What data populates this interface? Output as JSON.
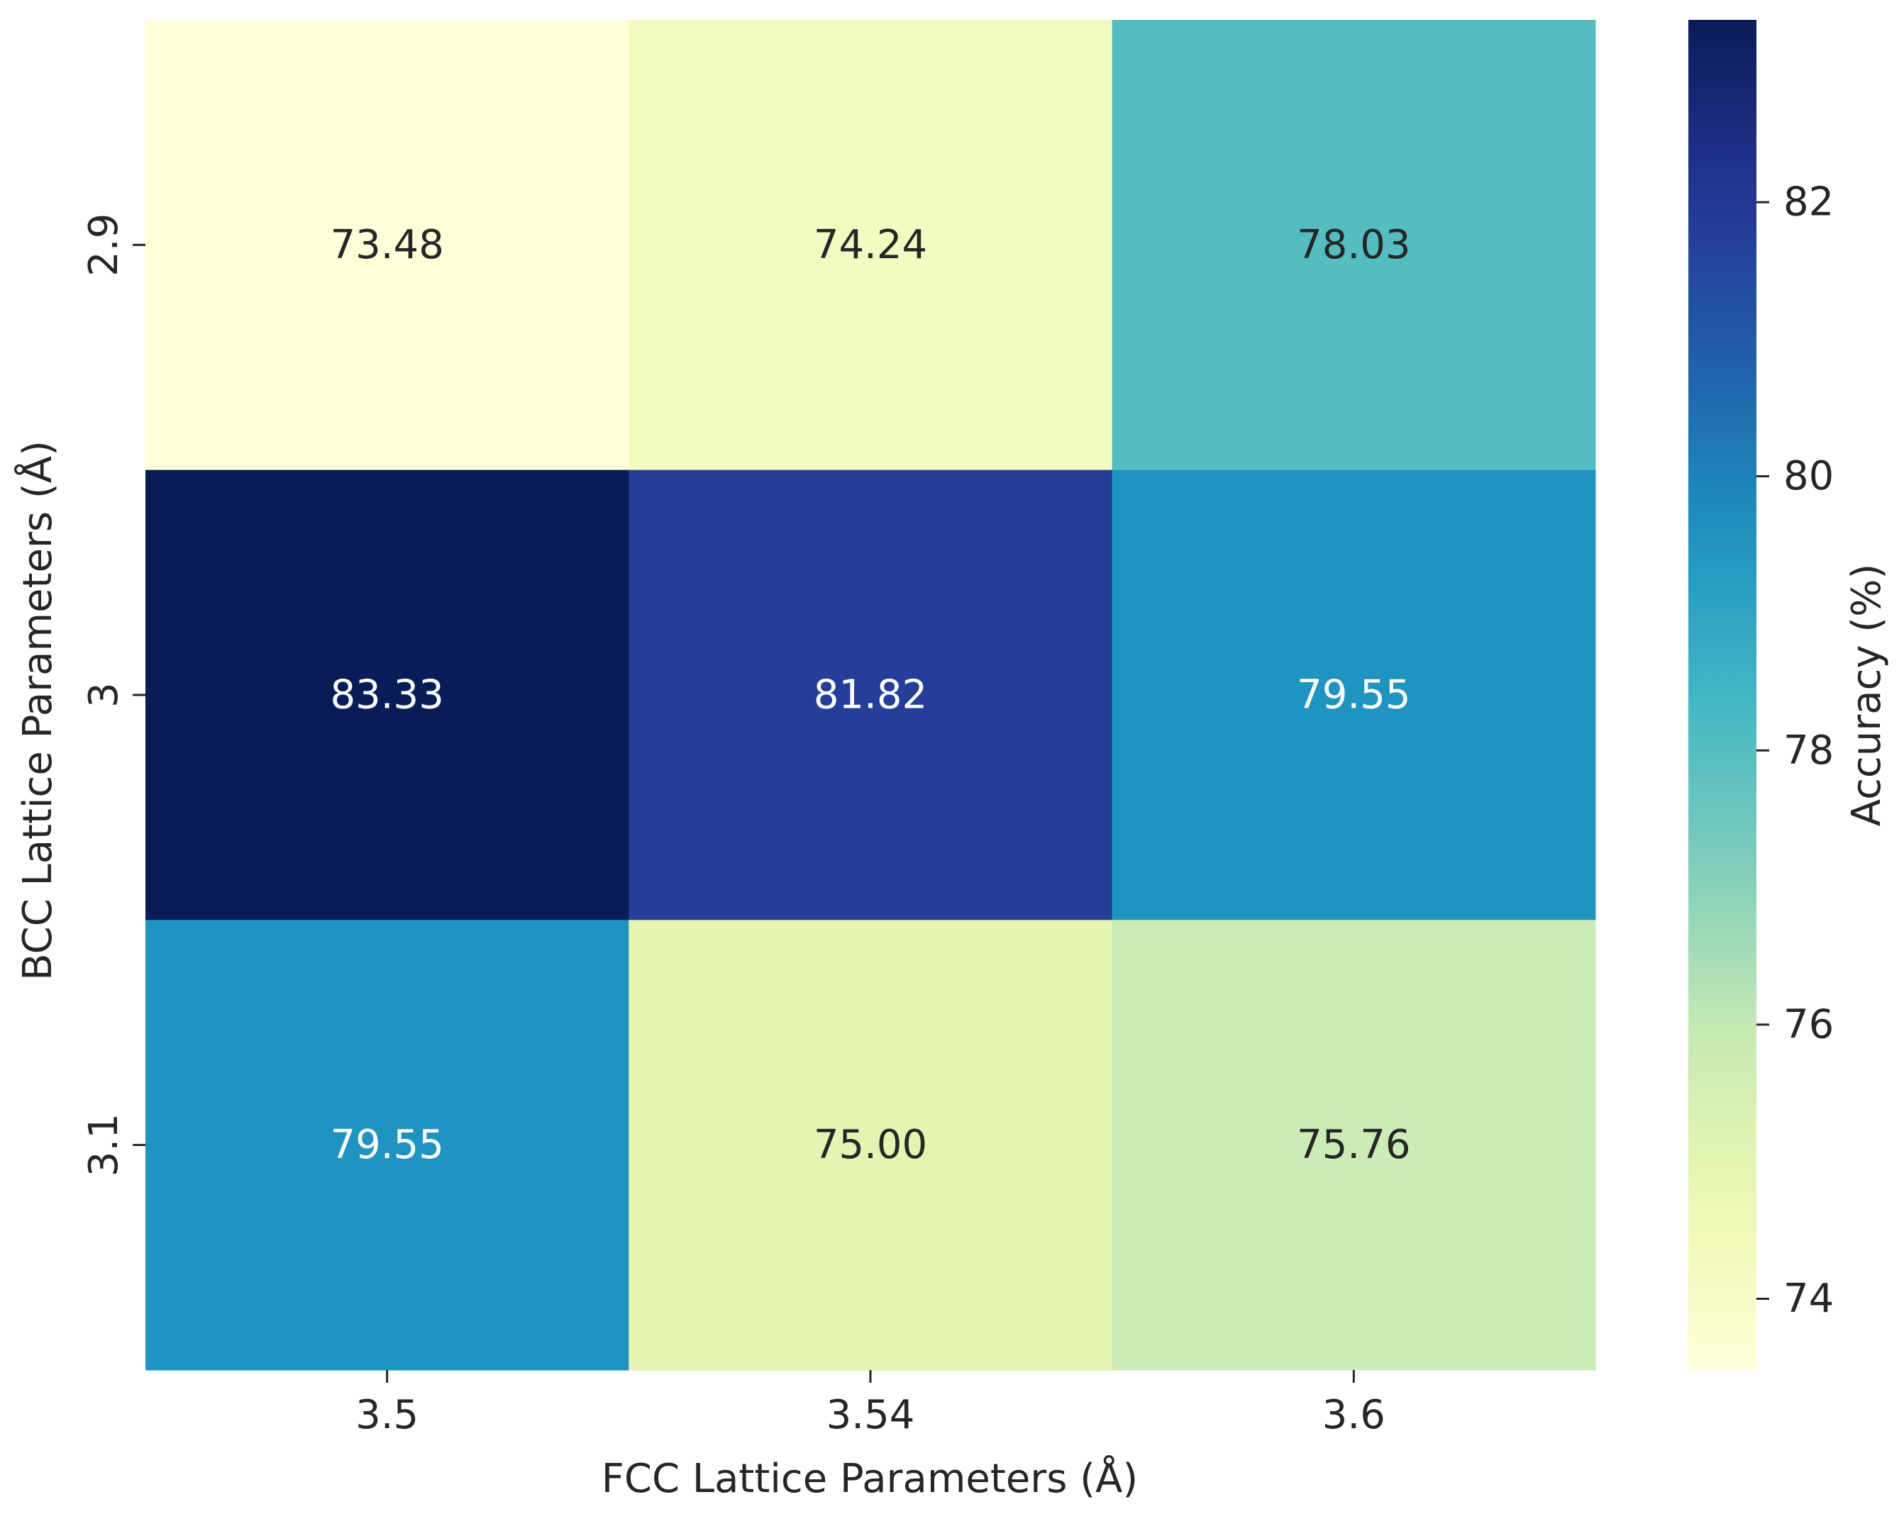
{
  "chart_data": {
    "type": "heatmap",
    "title": "",
    "xlabel": "FCC Lattice Parameters (Å)",
    "ylabel": "BCC Lattice Parameters (Å)",
    "x_categories": [
      "3.5",
      "3.54",
      "3.6"
    ],
    "y_categories": [
      "2.9",
      "3",
      "3.1"
    ],
    "values": [
      [
        73.48,
        74.24,
        78.03
      ],
      [
        83.33,
        81.82,
        79.55
      ],
      [
        79.55,
        75.0,
        75.76
      ]
    ],
    "cell_labels": [
      [
        "73.48",
        "74.24",
        "78.03"
      ],
      [
        "83.33",
        "81.82",
        "79.55"
      ],
      [
        "79.55",
        "75.00",
        "75.76"
      ]
    ],
    "colormap": "YlGnBu",
    "vmin": 73.48,
    "vmax": 83.33,
    "colorbar": {
      "label": "Accuracy (%)",
      "ticks": [
        74,
        76,
        78,
        80,
        82
      ],
      "tick_labels": [
        "74",
        "76",
        "78",
        "80",
        "82"
      ]
    },
    "colors": {
      "dark_text": "#262626",
      "light_text": "#ffffff",
      "axis": "#262626"
    }
  }
}
